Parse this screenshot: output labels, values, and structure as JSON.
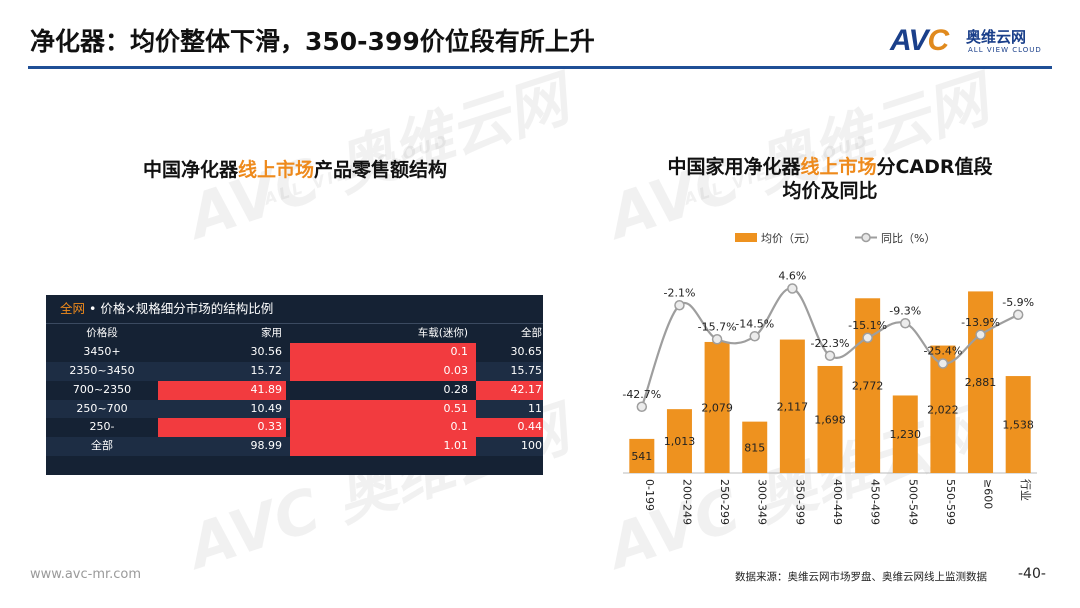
{
  "header": {
    "title": "净化器：均价整体下滑，350-399价位段有所上升",
    "logo_mark_a": "AV",
    "logo_mark_b": "C",
    "logo_cn": "奥维云网",
    "logo_en": "ALL VIEW CLOUD"
  },
  "left": {
    "title_a": "中国净化器",
    "title_hl": "线上市场",
    "title_b": "产品零售额结构",
    "table": {
      "scope": "全网",
      "caption": " • 价格×规格细分市场的结构比例",
      "columns": [
        "价格段",
        "家用",
        "车载(迷你)",
        "全部"
      ],
      "rows": [
        {
          "band": "3450+",
          "home": "30.56",
          "car": "0.1",
          "all": "30.65"
        },
        {
          "band": "2350~3450",
          "home": "15.72",
          "car": "0.03",
          "all": "15.75"
        },
        {
          "band": "700~2350",
          "home": "41.89",
          "car": "0.28",
          "all": "42.17"
        },
        {
          "band": "250~700",
          "home": "10.49",
          "car": "0.51",
          "all": "11"
        },
        {
          "band": "250-",
          "home": "0.33",
          "car": "0.1",
          "all": "0.44"
        },
        {
          "band": "全部",
          "home": "98.99",
          "car": "1.01",
          "all": "100"
        }
      ]
    }
  },
  "right": {
    "title_a": "中国家用净化器",
    "title_hl": "线上市场",
    "title_b": "分CADR值段",
    "title_line2": "均价及同比"
  },
  "chart_data": {
    "type": "bar",
    "title": "中国家用净化器线上市场分CADR值段均价及同比",
    "categories": [
      "0-199",
      "200-249",
      "250-299",
      "300-349",
      "350-399",
      "400-449",
      "450-499",
      "500-549",
      "550-599",
      "≥600",
      "行业"
    ],
    "series": [
      {
        "name": "均价（元）",
        "type": "bar",
        "values": [
          541,
          1013,
          2079,
          815,
          2117,
          1698,
          2772,
          1230,
          2022,
          2881,
          1538
        ],
        "labels": [
          "541",
          "1,013",
          "2,079",
          "815",
          "2,117",
          "1,698",
          "2,772",
          "1,230",
          "2,022",
          "2,881",
          "1,538"
        ]
      },
      {
        "name": "同比（%）",
        "type": "line",
        "values": [
          -42.7,
          -2.1,
          -15.7,
          -14.5,
          4.6,
          -22.3,
          -15.1,
          -9.3,
          -25.4,
          -13.9,
          -5.9
        ],
        "labels": [
          "-42.7%",
          "-2.1%",
          "-15.7%",
          "-14.5%",
          "4.6%",
          "-22.3%",
          "-15.1%",
          "-9.3%",
          "-25.4%",
          "-13.9%",
          "-5.9%"
        ]
      }
    ],
    "ylim_bar": [
      0,
      3300
    ],
    "ylim_line": [
      -50,
      10
    ],
    "legend": "top",
    "colors": {
      "bar": "#ee921f",
      "line": "#9e9e9e"
    }
  },
  "footer": {
    "url": "www.avc-mr.com",
    "source": "数据来源：奥维云网市场罗盘、奥维云网线上监测数据",
    "page": "-40-"
  }
}
